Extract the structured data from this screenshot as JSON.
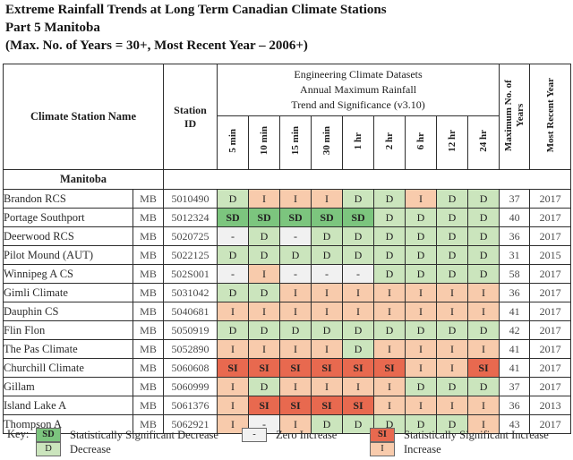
{
  "title": {
    "line1": "Extreme Rainfall Trends at Long Term Canadian Climate Stations",
    "line2": "Part 5 Manitoba",
    "line3": "(Max. No. of Years = 30+, Most Recent Year – 2006+)"
  },
  "table": {
    "headers": {
      "station_name": "Climate Station Name",
      "station_id_line1": "Station",
      "station_id_line2": "ID",
      "dataset_line1": "Engineering Climate Datasets",
      "dataset_line2": "Annual Maximum Rainfall",
      "dataset_line3": "Trend and Significance (v3.10)",
      "durations": [
        "5 min",
        "10 min",
        "15 min",
        "30 min",
        "1 hr",
        "2 hr",
        "6 hr",
        "12 hr",
        "24 hr"
      ],
      "max_years": "Maximum No. of Years",
      "most_recent_year": "Most Recent Year"
    },
    "section": "Manitoba",
    "rows": [
      {
        "name": "Brandon RCS",
        "province": "MB",
        "station_id": "5010490",
        "trends": [
          "D",
          "I",
          "I",
          "I",
          "D",
          "D",
          "I",
          "D",
          "D"
        ],
        "max_years": "37",
        "recent_year": "2017"
      },
      {
        "name": "Portage Southport",
        "province": "MB",
        "station_id": "5012324",
        "trends": [
          "SD",
          "SD",
          "SD",
          "SD",
          "SD",
          "D",
          "D",
          "D",
          "D"
        ],
        "max_years": "40",
        "recent_year": "2017"
      },
      {
        "name": "Deerwood RCS",
        "province": "MB",
        "station_id": "5020725",
        "trends": [
          "-",
          "D",
          "-",
          "D",
          "D",
          "D",
          "D",
          "D",
          "D"
        ],
        "max_years": "36",
        "recent_year": "2017"
      },
      {
        "name": "Pilot Mound (AUT)",
        "province": "MB",
        "station_id": "5022125",
        "trends": [
          "D",
          "D",
          "D",
          "D",
          "D",
          "D",
          "D",
          "D",
          "D"
        ],
        "max_years": "31",
        "recent_year": "2015"
      },
      {
        "name": "Winnipeg A CS",
        "province": "MB",
        "station_id": "502S001",
        "trends": [
          "-",
          "I",
          "-",
          "-",
          "-",
          "D",
          "D",
          "D",
          "D"
        ],
        "max_years": "58",
        "recent_year": "2017"
      },
      {
        "name": "Gimli Climate",
        "province": "MB",
        "station_id": "5031042",
        "trends": [
          "D",
          "D",
          "I",
          "I",
          "I",
          "I",
          "I",
          "I",
          "I"
        ],
        "max_years": "36",
        "recent_year": "2017"
      },
      {
        "name": "Dauphin CS",
        "province": "MB",
        "station_id": "5040681",
        "trends": [
          "I",
          "I",
          "I",
          "I",
          "I",
          "I",
          "I",
          "I",
          "I"
        ],
        "max_years": "41",
        "recent_year": "2017"
      },
      {
        "name": "Flin Flon",
        "province": "MB",
        "station_id": "5050919",
        "trends": [
          "D",
          "D",
          "D",
          "D",
          "D",
          "D",
          "D",
          "D",
          "D"
        ],
        "max_years": "42",
        "recent_year": "2017"
      },
      {
        "name": "The Pas Climate",
        "province": "MB",
        "station_id": "5052890",
        "trends": [
          "I",
          "I",
          "I",
          "I",
          "D",
          "I",
          "I",
          "I",
          "I"
        ],
        "max_years": "41",
        "recent_year": "2017"
      },
      {
        "name": "Churchill Climate",
        "province": "MB",
        "station_id": "5060608",
        "trends": [
          "SI",
          "SI",
          "SI",
          "SI",
          "SI",
          "SI",
          "I",
          "I",
          "SI"
        ],
        "max_years": "41",
        "recent_year": "2017"
      },
      {
        "name": "Gillam",
        "province": "MB",
        "station_id": "5060999",
        "trends": [
          "I",
          "D",
          "I",
          "I",
          "I",
          "I",
          "D",
          "D",
          "D"
        ],
        "max_years": "37",
        "recent_year": "2017"
      },
      {
        "name": "Island Lake A",
        "province": "MB",
        "station_id": "5061376",
        "trends": [
          "I",
          "SI",
          "SI",
          "SI",
          "SI",
          "I",
          "I",
          "I",
          "I"
        ],
        "max_years": "36",
        "recent_year": "2013"
      },
      {
        "name": "Thompson A",
        "province": "MB",
        "station_id": "5062921",
        "trends": [
          "I",
          "-",
          "I",
          "D",
          "D",
          "D",
          "D",
          "D",
          "I"
        ],
        "max_years": "43",
        "recent_year": "2017"
      }
    ]
  },
  "key": {
    "label": "Key:",
    "items": [
      {
        "code": "SD",
        "label": "Statistically Significant Decrease"
      },
      {
        "code": "D",
        "label": "Decrease"
      },
      {
        "code": "-",
        "label": "Zero Increase"
      },
      {
        "code": "SI",
        "label": "Statistically Significant Increase"
      },
      {
        "code": "I",
        "label": "Increase"
      }
    ]
  },
  "colors": {
    "significant_decrease": "#7cc57e",
    "decrease": "#cbe5bd",
    "zero_increase": "#f1f1f1",
    "increase": "#f8cbac",
    "significant_increase": "#e8694f",
    "grid_border": "#2e2e2e"
  }
}
